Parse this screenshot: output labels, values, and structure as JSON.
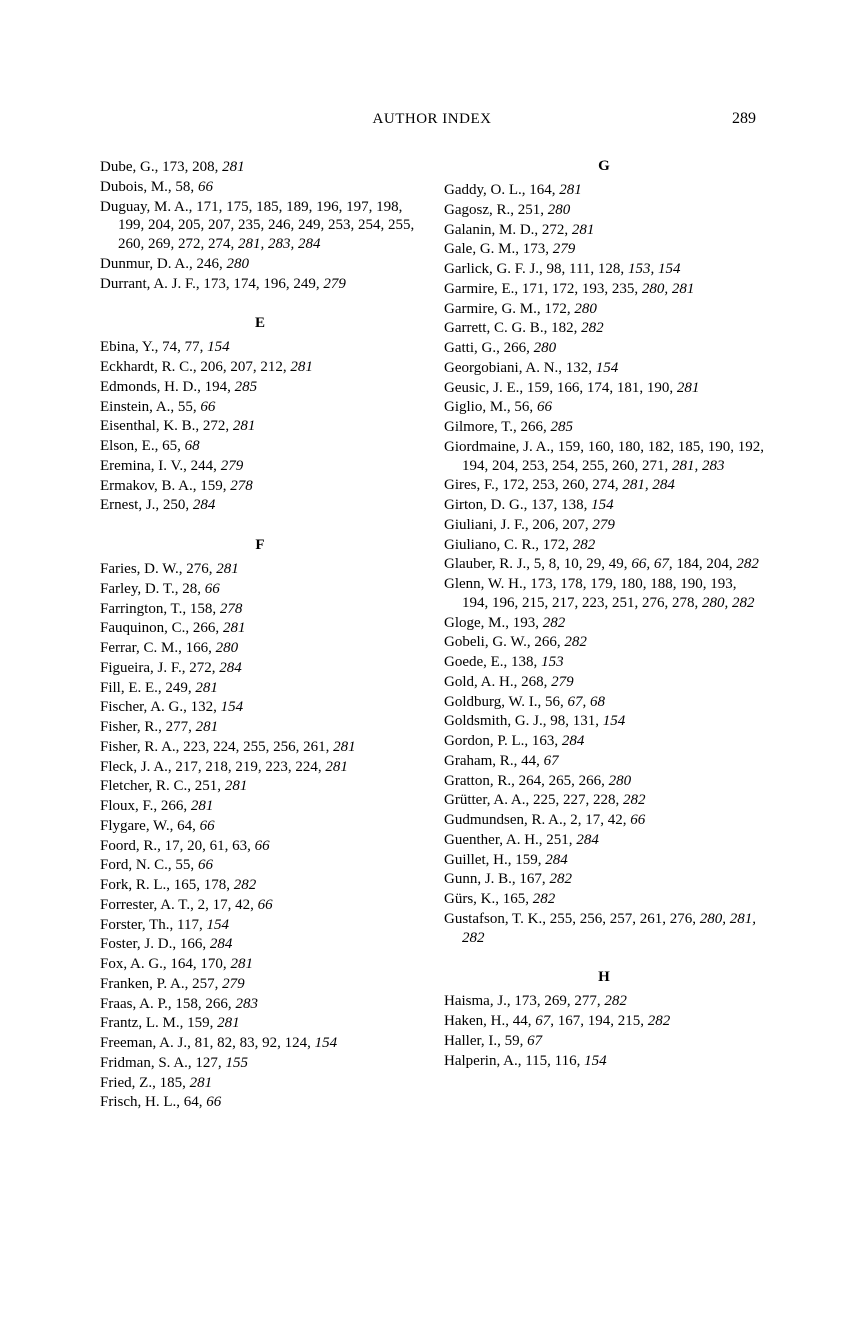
{
  "header": {
    "title": "AUTHOR INDEX",
    "page": "289"
  },
  "left": [
    {
      "type": "entry",
      "segs": [
        {
          "t": "Dube, G., 173, 208, "
        },
        {
          "t": "281",
          "i": true
        }
      ]
    },
    {
      "type": "entry",
      "segs": [
        {
          "t": "Dubois, M., 58, "
        },
        {
          "t": "66",
          "i": true
        }
      ]
    },
    {
      "type": "entry",
      "segs": [
        {
          "t": "Duguay, M. A., 171, 175, 185, 189, 196, 197, 198, 199, 204, 205, 207, 235, 246, 249, 253, 254, 255, 260, 269, 272, 274, "
        },
        {
          "t": "281, 283, 284",
          "i": true
        }
      ]
    },
    {
      "type": "entry",
      "segs": [
        {
          "t": "Dunmur, D. A., 246, "
        },
        {
          "t": "280",
          "i": true
        }
      ]
    },
    {
      "type": "entry",
      "segs": [
        {
          "t": "Durrant, A. J. F., 173, 174, 196, 249, "
        },
        {
          "t": "279",
          "i": true
        }
      ]
    },
    {
      "type": "letter",
      "text": "E"
    },
    {
      "type": "entry",
      "segs": [
        {
          "t": "Ebina, Y., 74, 77, "
        },
        {
          "t": "154",
          "i": true
        }
      ]
    },
    {
      "type": "entry",
      "segs": [
        {
          "t": "Eckhardt, R. C., 206, 207, 212, "
        },
        {
          "t": "281",
          "i": true
        }
      ]
    },
    {
      "type": "entry",
      "segs": [
        {
          "t": "Edmonds, H. D., 194, "
        },
        {
          "t": "285",
          "i": true
        }
      ]
    },
    {
      "type": "entry",
      "segs": [
        {
          "t": "Einstein, A., 55, "
        },
        {
          "t": "66",
          "i": true
        }
      ]
    },
    {
      "type": "entry",
      "segs": [
        {
          "t": "Eisenthal, K. B., 272, "
        },
        {
          "t": "281",
          "i": true
        }
      ]
    },
    {
      "type": "entry",
      "segs": [
        {
          "t": "Elson, E., 65, "
        },
        {
          "t": "68",
          "i": true
        }
      ]
    },
    {
      "type": "entry",
      "segs": [
        {
          "t": "Eremina, I. V., 244, "
        },
        {
          "t": "279",
          "i": true
        }
      ]
    },
    {
      "type": "entry",
      "segs": [
        {
          "t": "Ermakov, B. A., 159, "
        },
        {
          "t": "278",
          "i": true
        }
      ]
    },
    {
      "type": "entry",
      "segs": [
        {
          "t": "Ernest, J., 250, "
        },
        {
          "t": "284",
          "i": true
        }
      ]
    },
    {
      "type": "letter",
      "text": "F"
    },
    {
      "type": "entry",
      "segs": [
        {
          "t": "Faries, D. W., 276, "
        },
        {
          "t": "281",
          "i": true
        }
      ]
    },
    {
      "type": "entry",
      "segs": [
        {
          "t": "Farley, D. T., 28, "
        },
        {
          "t": "66",
          "i": true
        }
      ]
    },
    {
      "type": "entry",
      "segs": [
        {
          "t": "Farrington, T., 158, "
        },
        {
          "t": "278",
          "i": true
        }
      ]
    },
    {
      "type": "entry",
      "segs": [
        {
          "t": "Fauquinon, C., 266, "
        },
        {
          "t": "281",
          "i": true
        }
      ]
    },
    {
      "type": "entry",
      "segs": [
        {
          "t": "Ferrar, C. M., 166, "
        },
        {
          "t": "280",
          "i": true
        }
      ]
    },
    {
      "type": "entry",
      "segs": [
        {
          "t": "Figueira, J. F., 272, "
        },
        {
          "t": "284",
          "i": true
        }
      ]
    },
    {
      "type": "entry",
      "segs": [
        {
          "t": "Fill, E. E., 249, "
        },
        {
          "t": "281",
          "i": true
        }
      ]
    },
    {
      "type": "entry",
      "segs": [
        {
          "t": "Fischer, A. G., 132, "
        },
        {
          "t": "154",
          "i": true
        }
      ]
    },
    {
      "type": "entry",
      "segs": [
        {
          "t": "Fisher, R., 277, "
        },
        {
          "t": "281",
          "i": true
        }
      ]
    },
    {
      "type": "entry",
      "segs": [
        {
          "t": "Fisher, R. A., 223, 224, 255, 256, 261, "
        },
        {
          "t": "281",
          "i": true
        }
      ]
    },
    {
      "type": "entry",
      "segs": [
        {
          "t": "Fleck, J. A., 217, 218, 219, 223, 224, "
        },
        {
          "t": "281",
          "i": true
        }
      ]
    },
    {
      "type": "entry",
      "segs": [
        {
          "t": "Fletcher, R. C., 251, "
        },
        {
          "t": "281",
          "i": true
        }
      ]
    },
    {
      "type": "entry",
      "segs": [
        {
          "t": "Floux, F., 266, "
        },
        {
          "t": "281",
          "i": true
        }
      ]
    },
    {
      "type": "entry",
      "segs": [
        {
          "t": "Flygare, W., 64, "
        },
        {
          "t": "66",
          "i": true
        }
      ]
    },
    {
      "type": "entry",
      "segs": [
        {
          "t": "Foord, R., 17, 20, 61, 63, "
        },
        {
          "t": "66",
          "i": true
        }
      ]
    },
    {
      "type": "entry",
      "segs": [
        {
          "t": "Ford, N. C., 55, "
        },
        {
          "t": "66",
          "i": true
        }
      ]
    },
    {
      "type": "entry",
      "segs": [
        {
          "t": "Fork, R. L., 165, 178, "
        },
        {
          "t": "282",
          "i": true
        }
      ]
    },
    {
      "type": "entry",
      "segs": [
        {
          "t": "Forrester, A. T., 2, 17, 42, "
        },
        {
          "t": "66",
          "i": true
        }
      ]
    },
    {
      "type": "entry",
      "segs": [
        {
          "t": "Forster, Th., 117, "
        },
        {
          "t": "154",
          "i": true
        }
      ]
    },
    {
      "type": "entry",
      "segs": [
        {
          "t": "Foster, J. D., 166, "
        },
        {
          "t": "284",
          "i": true
        }
      ]
    },
    {
      "type": "entry",
      "segs": [
        {
          "t": "Fox, A. G., 164, 170, "
        },
        {
          "t": "281",
          "i": true
        }
      ]
    },
    {
      "type": "entry",
      "segs": [
        {
          "t": "Franken, P. A., 257, "
        },
        {
          "t": "279",
          "i": true
        }
      ]
    },
    {
      "type": "entry",
      "segs": [
        {
          "t": "Fraas, A. P., 158, 266, "
        },
        {
          "t": "283",
          "i": true
        }
      ]
    },
    {
      "type": "entry",
      "segs": [
        {
          "t": "Frantz, L. M., 159, "
        },
        {
          "t": "281",
          "i": true
        }
      ]
    },
    {
      "type": "entry",
      "segs": [
        {
          "t": "Freeman, A. J., 81, 82, 83, 92, 124, "
        },
        {
          "t": "154",
          "i": true
        }
      ]
    },
    {
      "type": "entry",
      "segs": [
        {
          "t": "Fridman, S. A., 127, "
        },
        {
          "t": "155",
          "i": true
        }
      ]
    },
    {
      "type": "entry",
      "segs": [
        {
          "t": "Fried, Z., 185, "
        },
        {
          "t": "281",
          "i": true
        }
      ]
    },
    {
      "type": "entry",
      "segs": [
        {
          "t": "Frisch, H. L., 64, "
        },
        {
          "t": "66",
          "i": true
        }
      ]
    }
  ],
  "right": [
    {
      "type": "letter",
      "text": "G",
      "first": true
    },
    {
      "type": "entry",
      "segs": [
        {
          "t": "Gaddy, O. L., 164, "
        },
        {
          "t": "281",
          "i": true
        }
      ]
    },
    {
      "type": "entry",
      "segs": [
        {
          "t": "Gagosz, R., 251, "
        },
        {
          "t": "280",
          "i": true
        }
      ]
    },
    {
      "type": "entry",
      "segs": [
        {
          "t": "Galanin, M. D., 272, "
        },
        {
          "t": "281",
          "i": true
        }
      ]
    },
    {
      "type": "entry",
      "segs": [
        {
          "t": "Gale, G. M., 173, "
        },
        {
          "t": "279",
          "i": true
        }
      ]
    },
    {
      "type": "entry",
      "segs": [
        {
          "t": "Garlick, G. F. J., 98, 111, 128, "
        },
        {
          "t": "153, 154",
          "i": true
        }
      ]
    },
    {
      "type": "entry",
      "segs": [
        {
          "t": "Garmire, E., 171, 172, 193, 235, "
        },
        {
          "t": "280, 281",
          "i": true
        }
      ]
    },
    {
      "type": "entry",
      "segs": [
        {
          "t": "Garmire, G. M., 172, "
        },
        {
          "t": "280",
          "i": true
        }
      ]
    },
    {
      "type": "entry",
      "segs": [
        {
          "t": "Garrett, C. G. B., 182, "
        },
        {
          "t": "282",
          "i": true
        }
      ]
    },
    {
      "type": "entry",
      "segs": [
        {
          "t": "Gatti, G., 266, "
        },
        {
          "t": "280",
          "i": true
        }
      ]
    },
    {
      "type": "entry",
      "segs": [
        {
          "t": "Georgobiani, A. N., 132, "
        },
        {
          "t": "154",
          "i": true
        }
      ]
    },
    {
      "type": "entry",
      "segs": [
        {
          "t": "Geusic, J. E., 159, 166, 174, 181, 190, "
        },
        {
          "t": "281",
          "i": true
        }
      ]
    },
    {
      "type": "entry",
      "segs": [
        {
          "t": "Giglio, M., 56, "
        },
        {
          "t": "66",
          "i": true
        }
      ]
    },
    {
      "type": "entry",
      "segs": [
        {
          "t": "Gilmore, T., 266, "
        },
        {
          "t": "285",
          "i": true
        }
      ]
    },
    {
      "type": "entry",
      "segs": [
        {
          "t": "Giordmaine, J. A., 159, 160, 180, 182, 185, 190, 192, 194, 204, 253, 254, 255, 260, 271, "
        },
        {
          "t": "281, 283",
          "i": true
        }
      ]
    },
    {
      "type": "entry",
      "segs": [
        {
          "t": "Gires, F., 172, 253, 260, 274, "
        },
        {
          "t": "281, 284",
          "i": true
        }
      ]
    },
    {
      "type": "entry",
      "segs": [
        {
          "t": "Girton, D. G., 137, 138, "
        },
        {
          "t": "154",
          "i": true
        }
      ]
    },
    {
      "type": "entry",
      "segs": [
        {
          "t": "Giuliani, J. F., 206, 207, "
        },
        {
          "t": "279",
          "i": true
        }
      ]
    },
    {
      "type": "entry",
      "segs": [
        {
          "t": "Giuliano, C. R., 172, "
        },
        {
          "t": "282",
          "i": true
        }
      ]
    },
    {
      "type": "entry",
      "segs": [
        {
          "t": "Glauber, R. J., 5, 8, 10, 29, 49, "
        },
        {
          "t": "66, 67",
          "i": true
        },
        {
          "t": ", 184, 204, "
        },
        {
          "t": "282",
          "i": true
        }
      ]
    },
    {
      "type": "entry",
      "segs": [
        {
          "t": "Glenn, W. H., 173, 178, 179, 180, 188, 190, 193, 194, 196, 215, 217, 223, 251, 276, 278, "
        },
        {
          "t": "280, 282",
          "i": true
        }
      ]
    },
    {
      "type": "entry",
      "segs": [
        {
          "t": "Gloge, M., 193, "
        },
        {
          "t": "282",
          "i": true
        }
      ]
    },
    {
      "type": "entry",
      "segs": [
        {
          "t": "Gobeli, G. W., 266, "
        },
        {
          "t": "282",
          "i": true
        }
      ]
    },
    {
      "type": "entry",
      "segs": [
        {
          "t": "Goede, E., 138, "
        },
        {
          "t": "153",
          "i": true
        }
      ]
    },
    {
      "type": "entry",
      "segs": [
        {
          "t": "Gold, A. H., 268, "
        },
        {
          "t": "279",
          "i": true
        }
      ]
    },
    {
      "type": "entry",
      "segs": [
        {
          "t": "Goldburg, W. I., 56, "
        },
        {
          "t": "67, 68",
          "i": true
        }
      ]
    },
    {
      "type": "entry",
      "segs": [
        {
          "t": "Goldsmith, G. J., 98, 131, "
        },
        {
          "t": "154",
          "i": true
        }
      ]
    },
    {
      "type": "entry",
      "segs": [
        {
          "t": "Gordon, P. L., 163, "
        },
        {
          "t": "284",
          "i": true
        }
      ]
    },
    {
      "type": "entry",
      "segs": [
        {
          "t": "Graham, R., 44, "
        },
        {
          "t": "67",
          "i": true
        }
      ]
    },
    {
      "type": "entry",
      "segs": [
        {
          "t": "Gratton, R., 264, 265, 266, "
        },
        {
          "t": "280",
          "i": true
        }
      ]
    },
    {
      "type": "entry",
      "segs": [
        {
          "t": "Grütter, A. A., 225, 227, 228, "
        },
        {
          "t": "282",
          "i": true
        }
      ]
    },
    {
      "type": "entry",
      "segs": [
        {
          "t": "Gudmundsen, R. A., 2, 17, 42, "
        },
        {
          "t": "66",
          "i": true
        }
      ]
    },
    {
      "type": "entry",
      "segs": [
        {
          "t": "Guenther, A. H., 251, "
        },
        {
          "t": "284",
          "i": true
        }
      ]
    },
    {
      "type": "entry",
      "segs": [
        {
          "t": "Guillet, H., 159, "
        },
        {
          "t": "284",
          "i": true
        }
      ]
    },
    {
      "type": "entry",
      "segs": [
        {
          "t": "Gunn, J. B., 167, "
        },
        {
          "t": "282",
          "i": true
        }
      ]
    },
    {
      "type": "entry",
      "segs": [
        {
          "t": "Gürs, K., 165, "
        },
        {
          "t": "282",
          "i": true
        }
      ]
    },
    {
      "type": "entry",
      "segs": [
        {
          "t": "Gustafson, T. K., 255, 256, 257, 261, 276, "
        },
        {
          "t": "280, 281, 282",
          "i": true
        }
      ]
    },
    {
      "type": "letter",
      "text": "H"
    },
    {
      "type": "entry",
      "segs": [
        {
          "t": "Haisma, J., 173, 269, 277, "
        },
        {
          "t": "282",
          "i": true
        }
      ]
    },
    {
      "type": "entry",
      "segs": [
        {
          "t": "Haken, H., 44, "
        },
        {
          "t": "67",
          "i": true
        },
        {
          "t": ", 167, 194, 215, "
        },
        {
          "t": "282",
          "i": true
        }
      ]
    },
    {
      "type": "entry",
      "segs": [
        {
          "t": "Haller, I., 59, "
        },
        {
          "t": "67",
          "i": true
        }
      ]
    },
    {
      "type": "entry",
      "segs": [
        {
          "t": "Halperin, A., 115, 116, "
        },
        {
          "t": "154",
          "i": true
        }
      ]
    }
  ]
}
